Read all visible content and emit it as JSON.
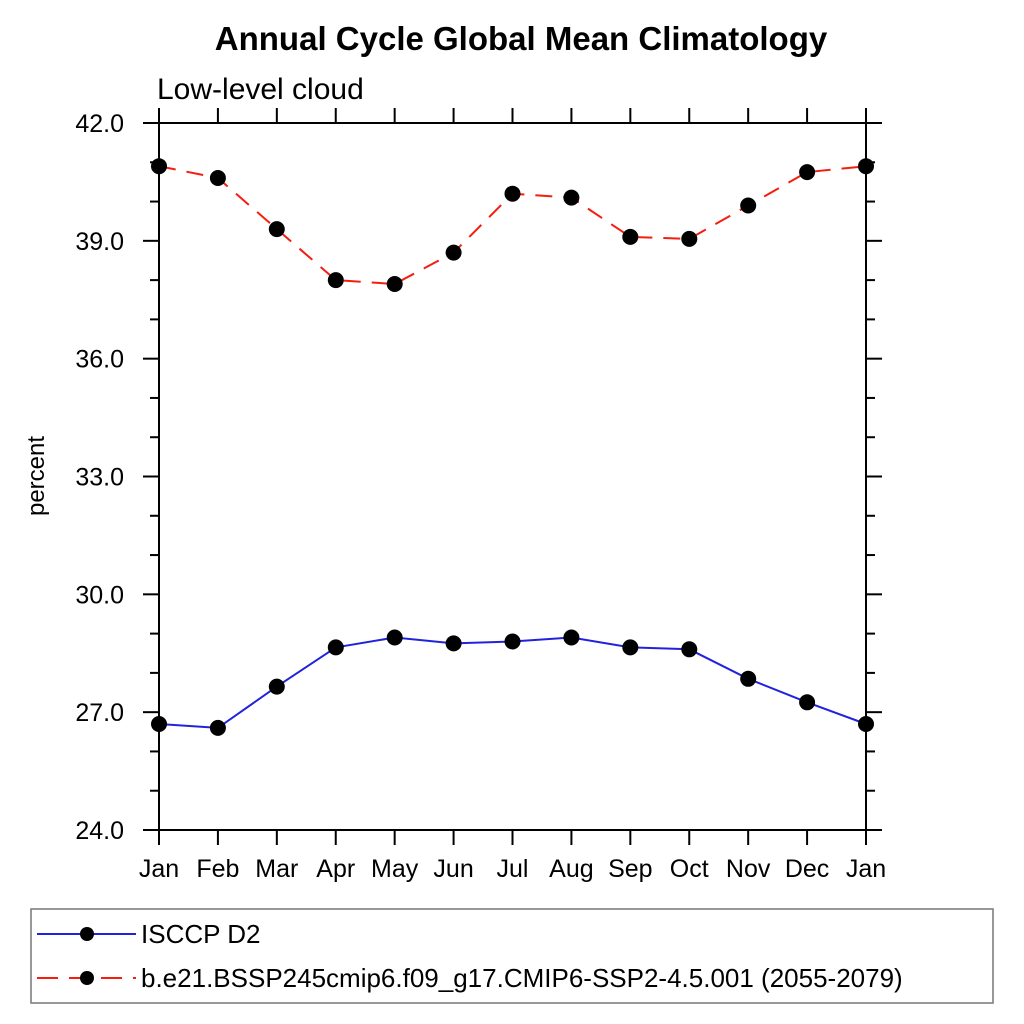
{
  "chart_data": {
    "type": "line",
    "title": "Annual Cycle Global Mean Climatology",
    "subtitle": "Low-level cloud",
    "ylabel": "percent",
    "xlabel": "",
    "ylim": [
      24.0,
      42.0
    ],
    "y_major_ticks": [
      {
        "value": 24,
        "label": "24.0"
      },
      {
        "value": 27,
        "label": "27.0"
      },
      {
        "value": 30,
        "label": "30.0"
      },
      {
        "value": 33,
        "label": "33.0"
      },
      {
        "value": 36,
        "label": "36.0"
      },
      {
        "value": 39,
        "label": "39.0"
      },
      {
        "value": 42,
        "label": "42.0"
      }
    ],
    "y_minor_interval": 1.0,
    "categories": [
      "Jan",
      "Feb",
      "Mar",
      "Apr",
      "May",
      "Jun",
      "Jul",
      "Aug",
      "Sep",
      "Oct",
      "Nov",
      "Dec",
      "Jan"
    ],
    "grid": false,
    "legend_position": "bottom-left-box",
    "axis_color": "#000000",
    "marker": "filled-circle",
    "marker_color": "#000000",
    "series": [
      {
        "name": "ISCCP D2",
        "color": "#2222dd",
        "line_style": "solid",
        "values": [
          26.7,
          26.6,
          27.65,
          28.65,
          28.9,
          28.75,
          28.8,
          28.9,
          28.65,
          28.6,
          27.85,
          27.25,
          26.7
        ]
      },
      {
        "name": "b.e21.BSSP245cmip6.f09_g17.CMIP6-SSP2-4.5.001 (2055-2079)",
        "color": "#f51d10",
        "line_style": "dashed",
        "values": [
          40.9,
          40.6,
          39.3,
          38.0,
          37.9,
          38.7,
          40.2,
          40.1,
          39.1,
          39.05,
          39.9,
          40.75,
          40.9
        ]
      }
    ]
  }
}
